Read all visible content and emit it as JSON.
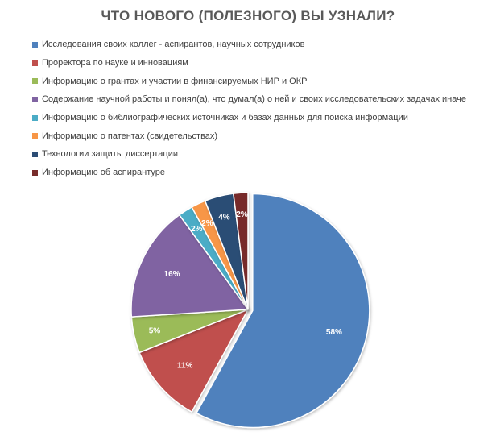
{
  "chart_data": {
    "type": "pie",
    "title": "ЧТО НОВОГО (ПОЛЕЗНОГО) ВЫ УЗНАЛИ?",
    "categories": [
      "Исследования своих коллег - аспирантов, научных сотрудников",
      "Проректора по науке и инновациям",
      "Информацию о грантах и участии в финансируемых НИР и ОКР",
      "Содержание научной работы и понял(а), что думал(а) о ней и своих исследовательских задачах иначе",
      "Информацию о библиографических источниках и базах данных для поиска информации",
      "Информацию о патентах (свидетельствах)",
      "Технологии защиты диссертации",
      "Информацию об аспирантуре"
    ],
    "values": [
      58,
      11,
      5,
      16,
      2,
      2,
      4,
      2
    ],
    "labels": [
      "58%",
      "11%",
      "5%",
      "16%",
      "2%",
      "2%",
      "4%",
      "2%"
    ],
    "colors": [
      "#4f81bd",
      "#c0504d",
      "#9bbb59",
      "#8064a2",
      "#4bacc6",
      "#f79646",
      "#2c4d75",
      "#772c2a"
    ],
    "legend_position": "top-left"
  }
}
